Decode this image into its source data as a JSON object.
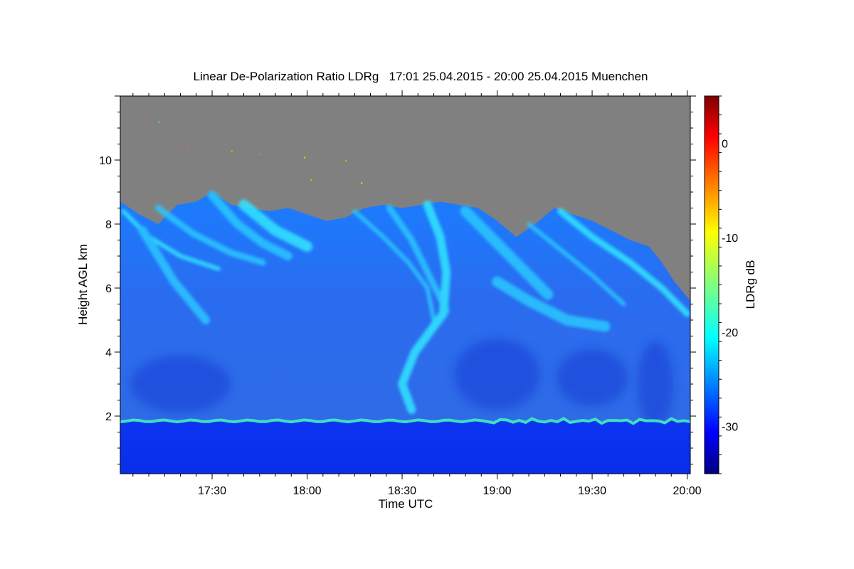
{
  "chart_data": {
    "type": "heatmap",
    "title": "Linear De-Polarization Ratio LDRg   17:01 25.04.2015 - 20:00 25.04.2015 Muenchen",
    "xlabel": "Time UTC",
    "ylabel": "Height AGL km",
    "colorbar_label": "LDRg dB",
    "x_range_minutes_utc": [
      1021,
      1201
    ],
    "x_ticks": [
      {
        "label": "17:30",
        "minutes": 1050
      },
      {
        "label": "18:00",
        "minutes": 1080
      },
      {
        "label": "18:30",
        "minutes": 1110
      },
      {
        "label": "19:00",
        "minutes": 1140
      },
      {
        "label": "19:30",
        "minutes": 1170
      },
      {
        "label": "20:00",
        "minutes": 1200
      }
    ],
    "ylim": [
      0.2,
      12.0
    ],
    "y_ticks": [
      {
        "label": "2",
        "value": 2
      },
      {
        "label": "4",
        "value": 4
      },
      {
        "label": "6",
        "value": 6
      },
      {
        "label": "8",
        "value": 8
      },
      {
        "label": "10",
        "value": 10
      }
    ],
    "colorbar_range": [
      -35,
      5
    ],
    "colorbar_ticks": [
      {
        "label": "0",
        "value": 0
      },
      {
        "label": "-10",
        "value": -10
      },
      {
        "label": "-20",
        "value": -20
      },
      {
        "label": "-30",
        "value": -30
      }
    ],
    "colormap": "jet",
    "no_signal_color": "#808080",
    "features": {
      "cloud_top_km": [
        {
          "t": 1021,
          "h": 8.7
        },
        {
          "t": 1027,
          "h": 8.3
        },
        {
          "t": 1033,
          "h": 8.0
        },
        {
          "t": 1039,
          "h": 8.6
        },
        {
          "t": 1045,
          "h": 8.7
        },
        {
          "t": 1050,
          "h": 9.0
        },
        {
          "t": 1056,
          "h": 8.6
        },
        {
          "t": 1062,
          "h": 8.5
        },
        {
          "t": 1068,
          "h": 8.4
        },
        {
          "t": 1074,
          "h": 8.5
        },
        {
          "t": 1080,
          "h": 8.3
        },
        {
          "t": 1086,
          "h": 8.1
        },
        {
          "t": 1092,
          "h": 8.2
        },
        {
          "t": 1098,
          "h": 8.5
        },
        {
          "t": 1104,
          "h": 8.6
        },
        {
          "t": 1110,
          "h": 8.5
        },
        {
          "t": 1116,
          "h": 8.6
        },
        {
          "t": 1122,
          "h": 8.7
        },
        {
          "t": 1128,
          "h": 8.6
        },
        {
          "t": 1134,
          "h": 8.5
        },
        {
          "t": 1140,
          "h": 8.1
        },
        {
          "t": 1146,
          "h": 7.6
        },
        {
          "t": 1152,
          "h": 8.0
        },
        {
          "t": 1158,
          "h": 8.5
        },
        {
          "t": 1164,
          "h": 8.3
        },
        {
          "t": 1170,
          "h": 8.1
        },
        {
          "t": 1176,
          "h": 7.8
        },
        {
          "t": 1182,
          "h": 7.5
        },
        {
          "t": 1188,
          "h": 7.3
        },
        {
          "t": 1192,
          "h": 6.8
        },
        {
          "t": 1196,
          "h": 6.2
        },
        {
          "t": 1201,
          "h": 5.6
        }
      ],
      "boundary_layer_top_km": 1.85,
      "mean_ldr_db": {
        "boundary_layer": -33,
        "boundary_layer_top": -15,
        "cirrus_background": -27,
        "cirrus_filaments": -20
      }
    }
  }
}
